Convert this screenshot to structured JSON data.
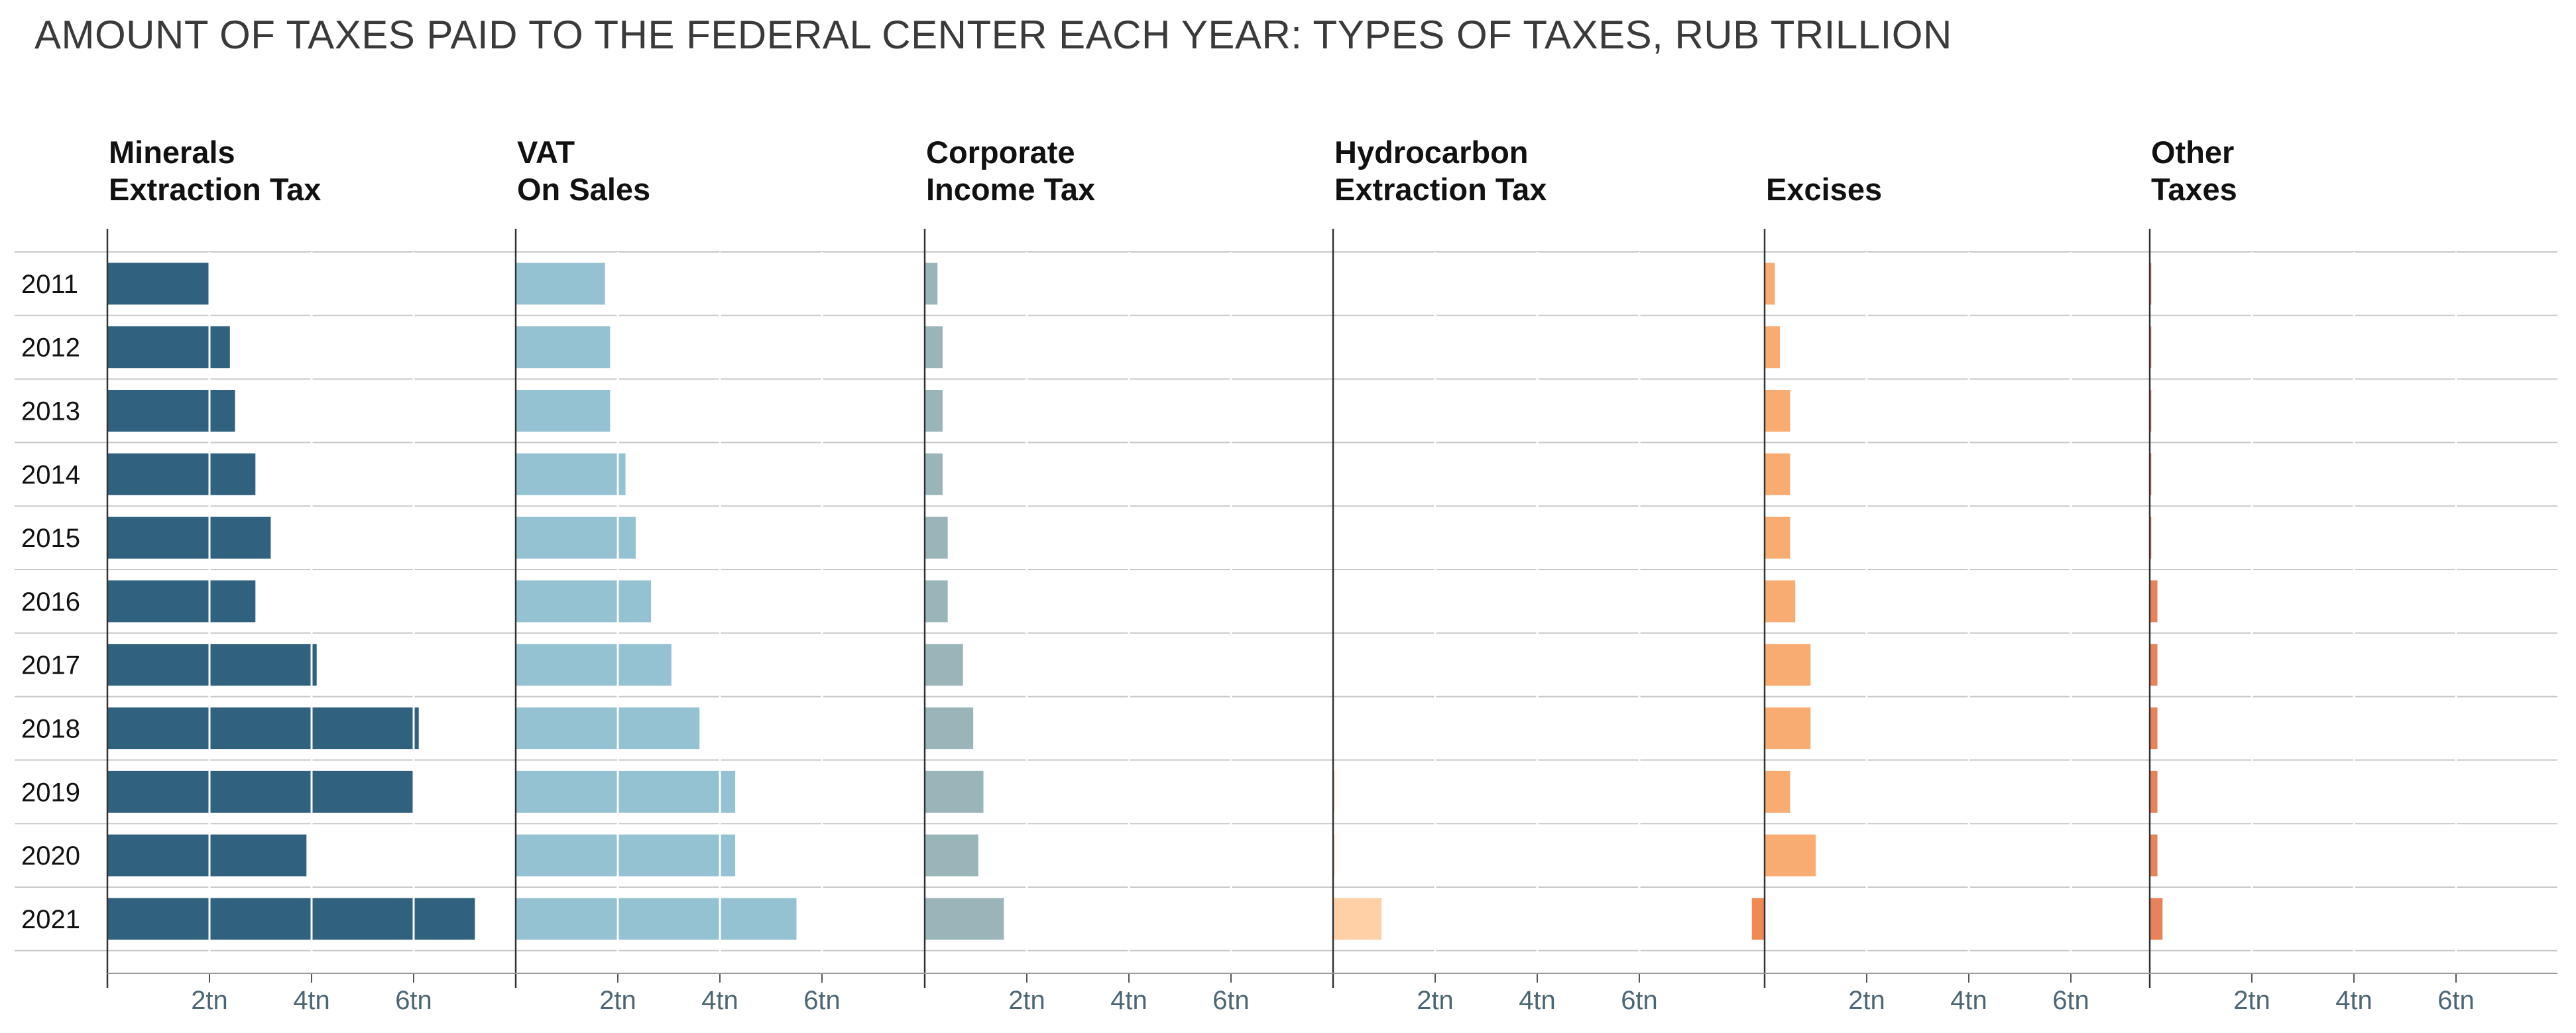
{
  "title": "AMOUNT OF TAXES PAID TO THE FEDERAL CENTER EACH YEAR: TYPES OF TAXES, RUB TRILLION",
  "chart_data": {
    "type": "bar",
    "orientation": "horizontal",
    "layout": "small-multiples",
    "title": "AMOUNT OF TAXES PAID TO THE FEDERAL CENTER EACH YEAR: TYPES OF TAXES, RUB TRILLION",
    "categories": [
      "2011",
      "2012",
      "2013",
      "2014",
      "2015",
      "2016",
      "2017",
      "2018",
      "2019",
      "2020",
      "2021"
    ],
    "xlim": [
      0,
      8
    ],
    "tick_values": [
      2,
      4,
      6
    ],
    "tick_labels": [
      "2tn",
      "4tn",
      "6tn"
    ],
    "grid": true,
    "series": [
      {
        "name": "Minerals Extraction Tax",
        "title_lines": [
          "Minerals",
          "Extraction Tax"
        ],
        "color": "#30617f",
        "values": [
          2.0,
          2.4,
          2.5,
          2.9,
          3.2,
          2.9,
          4.1,
          6.1,
          6.0,
          3.9,
          7.2
        ]
      },
      {
        "name": "VAT On Sales",
        "title_lines": [
          "VAT",
          "On Sales"
        ],
        "color": "#95c2d2",
        "values": [
          1.75,
          1.85,
          1.85,
          2.15,
          2.35,
          2.65,
          3.05,
          3.6,
          4.3,
          4.3,
          5.5
        ]
      },
      {
        "name": "Corporate Income Tax",
        "title_lines": [
          "Corporate",
          "Income Tax"
        ],
        "color": "#9ab5ba",
        "values": [
          0.25,
          0.35,
          0.35,
          0.35,
          0.45,
          0.45,
          0.75,
          0.95,
          1.15,
          1.05,
          1.55
        ]
      },
      {
        "name": "Hydrocarbon Extraction Tax",
        "title_lines": [
          "Hydrocarbon",
          "Extraction Tax"
        ],
        "color": "#ffcfa6",
        "values": [
          0,
          0,
          0,
          0,
          0,
          0,
          0,
          0,
          0.03,
          0.03,
          0.95
        ]
      },
      {
        "name": "Excises",
        "title_lines": [
          "Excises"
        ],
        "color": "#f9ac72",
        "values": [
          0.2,
          0.3,
          0.5,
          0.5,
          0.5,
          0.6,
          0.9,
          0.9,
          0.5,
          1.0,
          -0.25
        ]
      },
      {
        "name": "Other Taxes",
        "title_lines": [
          "Other",
          "Taxes"
        ],
        "color": "#e8825a",
        "values": [
          0.03,
          0.03,
          0.03,
          0.03,
          0.03,
          0.15,
          0.15,
          0.15,
          0.15,
          0.15,
          0.25
        ]
      }
    ]
  }
}
